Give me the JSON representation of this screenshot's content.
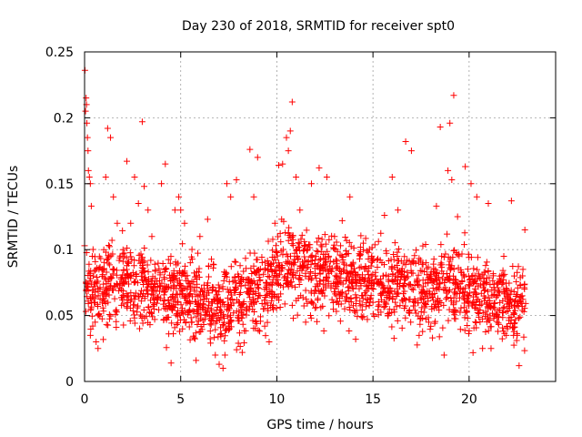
{
  "chart_data": {
    "type": "scatter",
    "title": "Day 230 of 2018, SRMTID for receiver spt0",
    "xlabel": "GPS time / hours",
    "ylabel": "SRMTID / TECUs",
    "xlim": [
      0,
      24.5
    ],
    "ylim": [
      0,
      0.25
    ],
    "x_ticks": [
      0,
      5,
      10,
      15,
      20
    ],
    "x_tick_labels": [
      "0",
      "5",
      "10",
      "15",
      "20"
    ],
    "y_ticks": [
      0,
      0.05,
      0.1,
      0.15,
      0.2,
      0.25
    ],
    "y_tick_labels": [
      "0",
      "0.05",
      "0.1",
      "0.15",
      "0.2",
      "0.25"
    ],
    "grid": true,
    "marker": "+",
    "color": "#ff0000",
    "series": [
      {
        "name": "SRMTID",
        "points": [
          [
            0.02,
            0.236
          ],
          [
            0.05,
            0.205
          ],
          [
            0.08,
            0.215
          ],
          [
            0.1,
            0.21
          ],
          [
            0.12,
            0.196
          ],
          [
            0.15,
            0.185
          ],
          [
            0.18,
            0.175
          ],
          [
            0.2,
            0.16
          ],
          [
            0.25,
            0.155
          ],
          [
            0.3,
            0.15
          ],
          [
            0.35,
            0.133
          ],
          [
            0.0,
            0.103
          ],
          [
            0.4,
            0.095
          ],
          [
            0.45,
            0.08
          ],
          [
            0.5,
            0.06
          ],
          [
            0.55,
            0.045
          ],
          [
            0.6,
            0.03
          ],
          [
            0.7,
            0.025
          ],
          [
            0.3,
            0.035
          ],
          [
            0.8,
            0.07
          ],
          [
            0.9,
            0.085
          ],
          [
            1.0,
            0.1
          ],
          [
            1.1,
            0.155
          ],
          [
            1.2,
            0.192
          ],
          [
            1.35,
            0.185
          ],
          [
            1.5,
            0.14
          ],
          [
            1.7,
            0.12
          ],
          [
            2.0,
            0.1
          ],
          [
            2.2,
            0.167
          ],
          [
            2.4,
            0.12
          ],
          [
            2.6,
            0.155
          ],
          [
            2.8,
            0.135
          ],
          [
            3.0,
            0.197
          ],
          [
            3.1,
            0.148
          ],
          [
            3.3,
            0.13
          ],
          [
            3.5,
            0.11
          ],
          [
            4.0,
            0.15
          ],
          [
            4.2,
            0.165
          ],
          [
            4.5,
            0.014
          ],
          [
            4.7,
            0.13
          ],
          [
            4.9,
            0.14
          ],
          [
            5.0,
            0.13
          ],
          [
            5.2,
            0.12
          ],
          [
            5.5,
            0.09
          ],
          [
            5.8,
            0.016
          ],
          [
            6.0,
            0.11
          ],
          [
            6.4,
            0.123
          ],
          [
            6.8,
            0.02
          ],
          [
            7.0,
            0.013
          ],
          [
            7.2,
            0.01
          ],
          [
            7.3,
            0.02
          ],
          [
            7.4,
            0.15
          ],
          [
            7.6,
            0.14
          ],
          [
            7.9,
            0.153
          ],
          [
            8.2,
            0.022
          ],
          [
            8.6,
            0.176
          ],
          [
            8.8,
            0.14
          ],
          [
            9.0,
            0.17
          ],
          [
            9.3,
            0.055
          ],
          [
            9.6,
            0.03
          ],
          [
            9.9,
            0.12
          ],
          [
            10.1,
            0.164
          ],
          [
            10.3,
            0.165
          ],
          [
            10.5,
            0.185
          ],
          [
            10.6,
            0.175
          ],
          [
            10.7,
            0.19
          ],
          [
            10.8,
            0.212
          ],
          [
            11.0,
            0.155
          ],
          [
            11.2,
            0.13
          ],
          [
            11.5,
            0.045
          ],
          [
            11.8,
            0.15
          ],
          [
            12.2,
            0.162
          ],
          [
            12.6,
            0.155
          ],
          [
            13.0,
            0.11
          ],
          [
            13.4,
            0.122
          ],
          [
            13.8,
            0.14
          ],
          [
            14.1,
            0.032
          ],
          [
            14.5,
            0.1
          ],
          [
            15.0,
            0.06
          ],
          [
            15.6,
            0.126
          ],
          [
            16.0,
            0.155
          ],
          [
            16.3,
            0.13
          ],
          [
            16.7,
            0.182
          ],
          [
            17.0,
            0.175
          ],
          [
            17.4,
            0.035
          ],
          [
            17.9,
            0.045
          ],
          [
            18.3,
            0.133
          ],
          [
            18.5,
            0.193
          ],
          [
            18.7,
            0.02
          ],
          [
            18.9,
            0.16
          ],
          [
            19.0,
            0.196
          ],
          [
            19.1,
            0.153
          ],
          [
            19.2,
            0.217
          ],
          [
            19.4,
            0.125
          ],
          [
            19.8,
            0.163
          ],
          [
            20.1,
            0.15
          ],
          [
            20.4,
            0.14
          ],
          [
            20.7,
            0.025
          ],
          [
            21.0,
            0.135
          ],
          [
            21.5,
            0.038
          ],
          [
            22.0,
            0.04
          ],
          [
            22.2,
            0.137
          ],
          [
            22.6,
            0.012
          ],
          [
            22.8,
            0.085
          ],
          [
            22.9,
            0.115
          ]
        ]
      }
    ],
    "background_density": {
      "x_range": [
        0.05,
        22.95
      ],
      "count": 2100,
      "seed": 230,
      "profile_x": [
        0,
        0.5,
        1,
        2,
        3,
        4,
        5,
        6,
        7,
        8,
        9,
        10,
        11,
        12,
        13,
        14,
        15,
        16,
        17,
        18,
        19,
        20,
        21,
        22,
        23
      ],
      "profile_y_median": [
        0.065,
        0.072,
        0.075,
        0.075,
        0.07,
        0.068,
        0.067,
        0.06,
        0.055,
        0.06,
        0.07,
        0.078,
        0.09,
        0.082,
        0.08,
        0.077,
        0.075,
        0.073,
        0.07,
        0.068,
        0.072,
        0.07,
        0.06,
        0.055,
        0.06
      ],
      "profile_y_spread": [
        0.025,
        0.03,
        0.03,
        0.028,
        0.027,
        0.027,
        0.028,
        0.03,
        0.028,
        0.03,
        0.03,
        0.03,
        0.03,
        0.03,
        0.03,
        0.03,
        0.028,
        0.027,
        0.027,
        0.028,
        0.03,
        0.03,
        0.027,
        0.025,
        0.025
      ]
    }
  }
}
